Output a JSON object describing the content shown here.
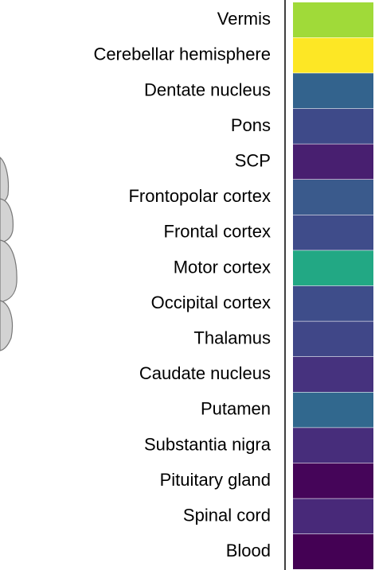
{
  "chart_data": {
    "type": "heatmap",
    "categories": [
      "Vermis",
      "Cerebellar hemisphere",
      "Dentate nucleus",
      "Pons",
      "SCP",
      "Frontopolar cortex",
      "Frontal cortex",
      "Motor cortex",
      "Occipital cortex",
      "Thalamus",
      "Caudate nucleus",
      "Putamen",
      "Substantia nigra",
      "Pituitary gland",
      "Spinal cord",
      "Blood"
    ],
    "colors": [
      "#a0da39",
      "#fde725",
      "#33638d",
      "#3e4a89",
      "#481f70",
      "#3a5a8c",
      "#3f4c8a",
      "#22a884",
      "#3e4d8a",
      "#404788",
      "#46327e",
      "#31688e",
      "#472d7b",
      "#450559",
      "#482979",
      "#440154"
    ]
  }
}
